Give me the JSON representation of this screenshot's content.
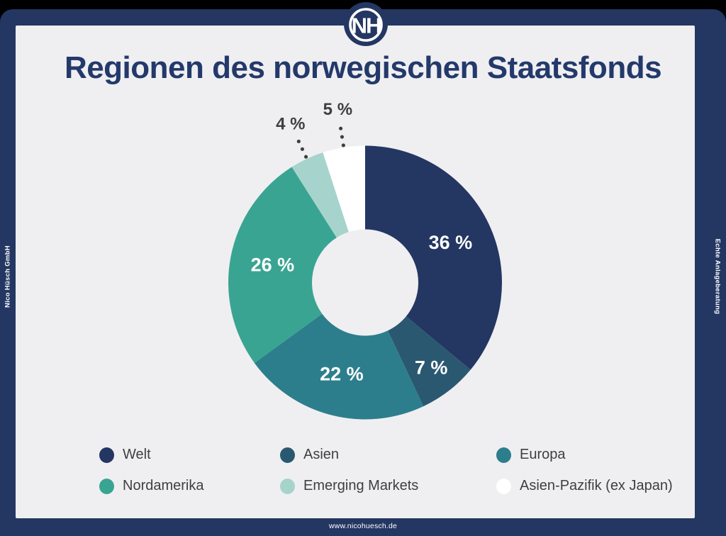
{
  "title": "Regionen des norwegischen Staatsfonds",
  "brand": {
    "logo_text": "NH",
    "left_side_text": "Nico Hüsch GmbH",
    "right_side_text": "Echte Anlageberatung",
    "footer_url": "www.nicohuesch.de"
  },
  "colors": {
    "frame_navy": "#243662",
    "title_navy": "#24396b",
    "content_background": "#efeff1",
    "dark_text": "#3f3f3f",
    "white": "#ffffff"
  },
  "chart_data": {
    "type": "pie",
    "subtype": "donut",
    "title": "Regionen des norwegischen Staatsfonds",
    "start_angle_deg": 0,
    "direction": "clockwise",
    "legend_position": "bottom",
    "slices": [
      {
        "label": "Welt",
        "value": 36,
        "value_label": "36 %",
        "color": "#243662",
        "label_placement": "inside"
      },
      {
        "label": "Asien",
        "value": 7,
        "value_label": "7 %",
        "color": "#2b5871",
        "label_placement": "inside"
      },
      {
        "label": "Europa",
        "value": 22,
        "value_label": "22 %",
        "color": "#2d7e8c",
        "label_placement": "inside"
      },
      {
        "label": "Nordamerika",
        "value": 26,
        "value_label": "26 %",
        "color": "#3aa492",
        "label_placement": "inside"
      },
      {
        "label": "Emerging Markets",
        "value": 4,
        "value_label": "4 %",
        "color": "#a6d4cc",
        "label_placement": "outside"
      },
      {
        "label": "Asien-Pazifik (ex Japan)",
        "value": 5,
        "value_label": "5 %",
        "color": "#ffffff",
        "label_placement": "outside"
      }
    ]
  }
}
